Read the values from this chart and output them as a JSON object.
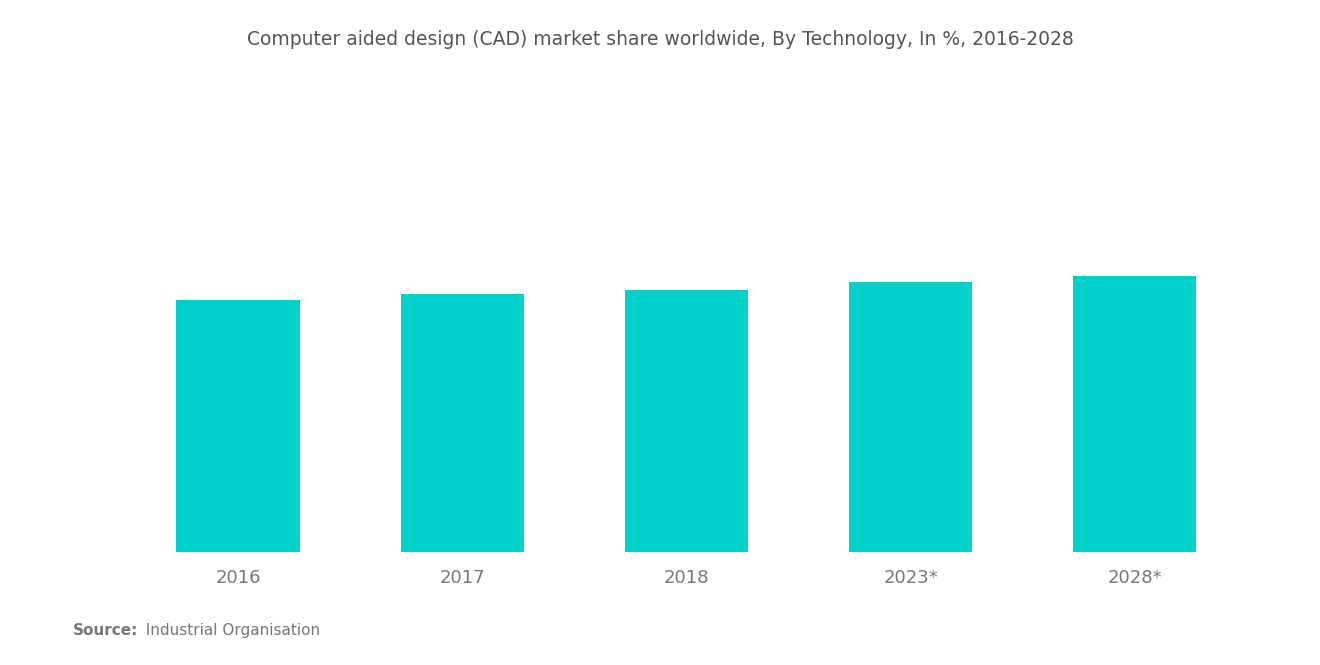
{
  "title": "Computer aided design (CAD) market share worldwide, By Technology, In %, 2016-2028",
  "categories": [
    "2016",
    "2017",
    "2018",
    "2023*",
    "2028*"
  ],
  "values": [
    62,
    63.5,
    64.5,
    66.5,
    68
  ],
  "bar_color": "#00D0CC",
  "background_color": "#ffffff",
  "title_color": "#555555",
  "tick_color": "#777777",
  "source_bold": "Source:",
  "source_normal": "  Industrial Organisation",
  "ylim": [
    0,
    100
  ],
  "bar_width": 0.55,
  "title_fontsize": 13.5,
  "tick_fontsize": 13,
  "source_fontsize": 11
}
